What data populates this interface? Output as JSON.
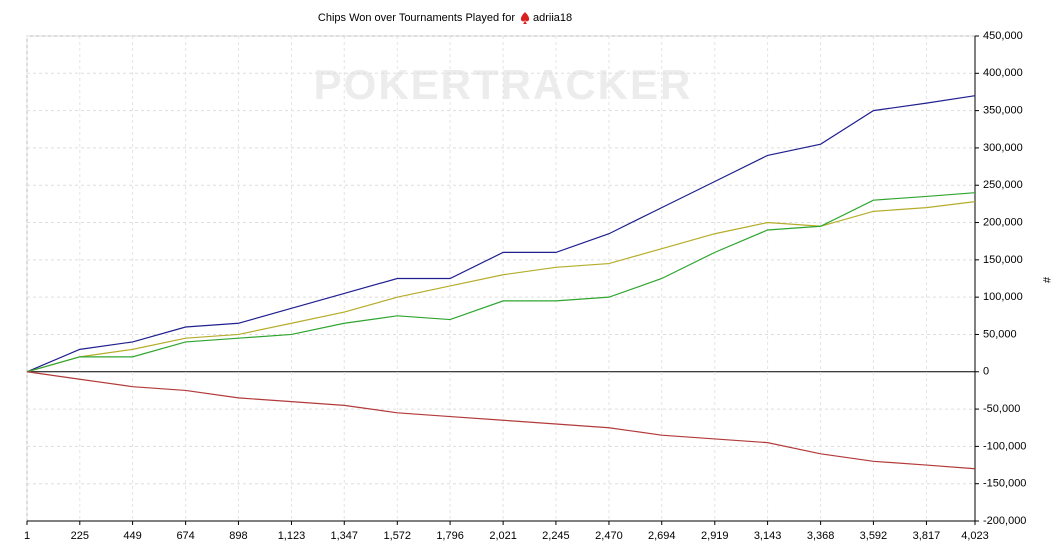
{
  "chart_data": {
    "type": "line",
    "title": "Chips Won over Tournaments Played for",
    "player": "adriia18",
    "watermark": "POKERTRACKER",
    "y_label": "#",
    "x": [
      1,
      225,
      449,
      674,
      898,
      1123,
      1347,
      1572,
      1796,
      2021,
      2245,
      2470,
      2694,
      2919,
      3143,
      3368,
      3592,
      3817,
      4023
    ],
    "series": [
      {
        "color": "#1f1f8f",
        "values": [
          0,
          30000,
          40000,
          60000,
          65000,
          85000,
          105000,
          125000,
          125000,
          160000,
          160000,
          185000,
          220000,
          255000,
          290000,
          305000,
          350000,
          360000,
          370000
        ]
      },
      {
        "color": "#b5ad2a",
        "values": [
          0,
          20000,
          30000,
          45000,
          50000,
          65000,
          80000,
          100000,
          115000,
          130000,
          140000,
          145000,
          165000,
          185000,
          200000,
          195000,
          215000,
          220000,
          228000
        ]
      },
      {
        "color": "#2fa52f",
        "values": [
          0,
          20000,
          20000,
          40000,
          45000,
          50000,
          65000,
          75000,
          70000,
          95000,
          95000,
          100000,
          125000,
          160000,
          190000,
          195000,
          230000,
          235000,
          240000
        ]
      },
      {
        "color": "#b23a3a",
        "values": [
          0,
          -10000,
          -20000,
          -25000,
          -35000,
          -40000,
          -45000,
          -55000,
          -60000,
          -65000,
          -70000,
          -75000,
          -85000,
          -90000,
          -95000,
          -110000,
          -120000,
          -125000,
          -130000
        ]
      }
    ],
    "xlim": [
      1,
      4023
    ],
    "xticks": [
      1,
      {
        "value": 225,
        "label": "225"
      },
      449,
      674,
      898,
      {
        "value": 1123,
        "label": "1,123"
      },
      {
        "value": 1347,
        "label": "1,347"
      },
      {
        "value": 1572,
        "label": "1,572"
      },
      {
        "value": 1796,
        "label": "1,796"
      },
      {
        "value": 2021,
        "label": "2,021"
      },
      {
        "value": 2245,
        "label": "2,245"
      },
      {
        "value": 2470,
        "label": "2,470"
      },
      {
        "value": 2694,
        "label": "2,694"
      },
      {
        "value": 2919,
        "label": "2,919"
      },
      {
        "value": 3143,
        "label": "3,143"
      },
      {
        "value": 3368,
        "label": "3,368"
      },
      {
        "value": 3592,
        "label": "3,592"
      },
      {
        "value": 3817,
        "label": "3,817"
      },
      {
        "value": 4023,
        "label": "4,023"
      }
    ],
    "ylim": [
      -200000,
      450000
    ],
    "yticks": [
      {
        "value": -200000,
        "label": "-200,000"
      },
      {
        "value": -150000,
        "label": "-150,000"
      },
      {
        "value": -100000,
        "label": "-100,000"
      },
      {
        "value": -50000,
        "label": "-50,000"
      },
      0,
      {
        "value": 50000,
        "label": "50,000"
      },
      {
        "value": 100000,
        "label": "100,000"
      },
      {
        "value": 150000,
        "label": "150,000"
      },
      {
        "value": 200000,
        "label": "200,000"
      },
      {
        "value": 250000,
        "label": "250,000"
      },
      {
        "value": 300000,
        "label": "300,000"
      },
      {
        "value": 350000,
        "label": "350,000"
      },
      {
        "value": 400000,
        "label": "400,000"
      },
      {
        "value": 450000,
        "label": "450,000"
      }
    ],
    "grid": true
  }
}
